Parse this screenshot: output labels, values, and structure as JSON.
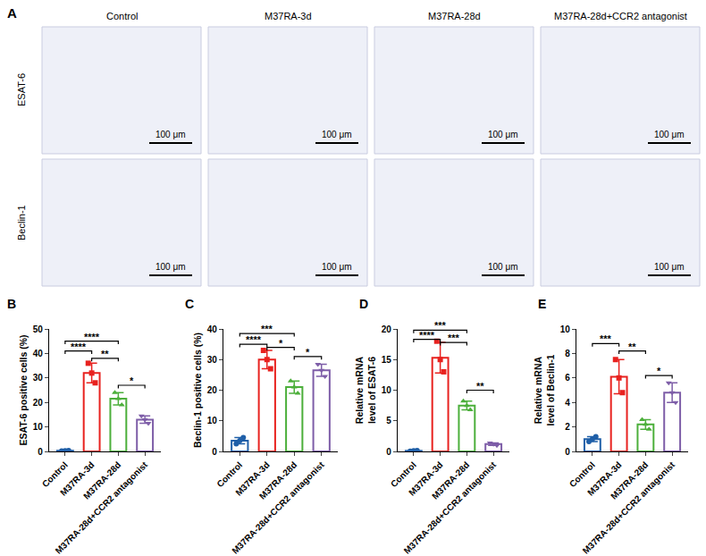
{
  "panel_a": {
    "letter": "A",
    "columns": [
      "Control",
      "M37RA-3d",
      "M37RA-28d",
      "M37RA-28d+CCR2 antagonist"
    ],
    "rows": [
      "ESAT-6",
      "Beclin-1"
    ],
    "scale_bar": "100 μm"
  },
  "chart_data": [
    {
      "letter": "B",
      "type": "bar",
      "y_label": "ESAT-6 positive cells (%)",
      "categories": [
        "Control",
        "M37RA-3d",
        "M37RA-28d",
        "M37RA-28d+CCR2 antagonist"
      ],
      "values": [
        0.3,
        32,
        21.5,
        13
      ],
      "error": [
        0.2,
        4,
        2.5,
        1.5
      ],
      "points": [
        [
          0.2,
          0.3,
          0.4
        ],
        [
          36,
          32,
          28
        ],
        [
          24,
          21.5,
          19
        ],
        [
          14.5,
          13,
          11.5
        ]
      ],
      "colors": [
        "#1f5fa8",
        "#e8221f",
        "#4caf3b",
        "#7e5ea8"
      ],
      "ylim": [
        0,
        50
      ],
      "yticks": [
        0,
        10,
        20,
        30,
        40,
        50
      ],
      "significance": [
        {
          "from": 0,
          "to": 2,
          "y": 45,
          "label": "****"
        },
        {
          "from": 0,
          "to": 1,
          "y": 41,
          "label": "****"
        },
        {
          "from": 1,
          "to": 2,
          "y": 38,
          "label": "**"
        },
        {
          "from": 2,
          "to": 3,
          "y": 27,
          "label": "*"
        }
      ]
    },
    {
      "letter": "C",
      "type": "bar",
      "y_label": "Beclin-1 positive cells (%)",
      "categories": [
        "Control",
        "M37RA-3d",
        "M37RA-28d",
        "M37RA-28d+CCR2 antagonist"
      ],
      "values": [
        3.5,
        30,
        21,
        26.5
      ],
      "error": [
        1,
        3,
        2,
        2
      ],
      "points": [
        [
          2.5,
          3.5,
          4.5
        ],
        [
          33,
          30,
          27
        ],
        [
          23,
          21,
          19
        ],
        [
          28.5,
          26.5,
          24.5
        ]
      ],
      "colors": [
        "#1f5fa8",
        "#e8221f",
        "#4caf3b",
        "#7e5ea8"
      ],
      "ylim": [
        0,
        40
      ],
      "yticks": [
        0,
        10,
        20,
        30,
        40
      ],
      "significance": [
        {
          "from": 0,
          "to": 2,
          "y": 38.5,
          "label": "***"
        },
        {
          "from": 0,
          "to": 1,
          "y": 35,
          "label": "****"
        },
        {
          "from": 1,
          "to": 2,
          "y": 34,
          "label": "*"
        },
        {
          "from": 2,
          "to": 3,
          "y": 31,
          "label": "*"
        }
      ]
    },
    {
      "letter": "D",
      "type": "bar",
      "y_label": "Relative mRNA level of ESAT-6",
      "categories": [
        "Control",
        "M37RA-3d",
        "M37RA-28d",
        "M37RA-28d+CCR2 antagonist"
      ],
      "values": [
        0.1,
        15.3,
        7.5,
        1.2
      ],
      "error": [
        0.05,
        2.5,
        0.7,
        0.2
      ],
      "points": [
        [
          0.05,
          0.1,
          0.15
        ],
        [
          18,
          15,
          13
        ],
        [
          8.2,
          7.5,
          6.8
        ],
        [
          1.4,
          1.2,
          1.0
        ]
      ],
      "colors": [
        "#1f5fa8",
        "#e8221f",
        "#4caf3b",
        "#7e5ea8"
      ],
      "ylim": [
        0,
        20
      ],
      "yticks": [
        0,
        5,
        10,
        15,
        20
      ],
      "significance": [
        {
          "from": 0,
          "to": 2,
          "y": 19.8,
          "label": "***"
        },
        {
          "from": 0,
          "to": 1,
          "y": 18.3,
          "label": "****"
        },
        {
          "from": 1,
          "to": 2,
          "y": 17.8,
          "label": "***"
        },
        {
          "from": 2,
          "to": 3,
          "y": 10,
          "label": "**"
        }
      ]
    },
    {
      "letter": "E",
      "type": "bar",
      "y_label": "Relative mRNA level of Beclin-1",
      "categories": [
        "Control",
        "M37RA-3d",
        "M37RA-28d",
        "M37RA-28d+CCR2 antagonist"
      ],
      "values": [
        1.0,
        6.1,
        2.2,
        4.8
      ],
      "error": [
        0.2,
        1.4,
        0.4,
        0.8
      ],
      "points": [
        [
          0.8,
          1.0,
          1.2
        ],
        [
          7.5,
          6,
          4.8
        ],
        [
          2.6,
          2.2,
          1.8
        ],
        [
          5.6,
          4.8,
          4.0
        ]
      ],
      "colors": [
        "#1f5fa8",
        "#e8221f",
        "#4caf3b",
        "#7e5ea8"
      ],
      "ylim": [
        0,
        10
      ],
      "yticks": [
        0,
        2,
        4,
        6,
        8,
        10
      ],
      "significance": [
        {
          "from": 0,
          "to": 1,
          "y": 8.8,
          "label": "***"
        },
        {
          "from": 1,
          "to": 2,
          "y": 8.2,
          "label": "**"
        },
        {
          "from": 2,
          "to": 3,
          "y": 6.2,
          "label": "*"
        }
      ]
    }
  ]
}
